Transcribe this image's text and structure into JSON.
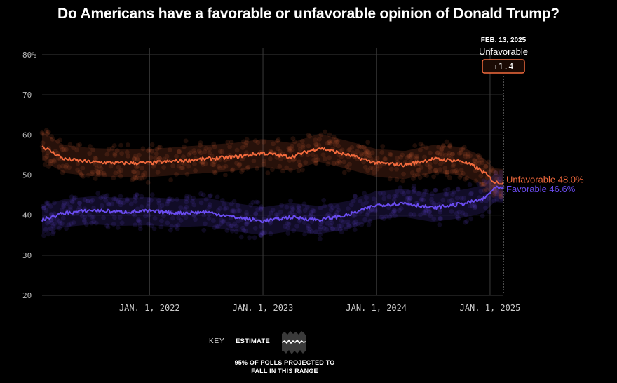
{
  "title": "Do Americans have a favorable or unfavorable opinion of Donald Trump?",
  "annotation": {
    "date": "FEB. 13, 2025",
    "label": "Unfavorable",
    "lead": "+1.4"
  },
  "key": {
    "key_label": "KEY",
    "estimate_label": "ESTIMATE",
    "range_label": "95% OF POLLS PROJECTED TO FALL IN THIS RANGE"
  },
  "colors": {
    "unfavorable": "#f26a3d",
    "favorable": "#6a4cf0",
    "grid": "#3a3a3a"
  },
  "chart_data": {
    "type": "line",
    "title": "Do Americans have a favorable or unfavorable opinion of Donald Trump?",
    "xlabel": "",
    "ylabel": "",
    "ylim": [
      20,
      80
    ],
    "y_ticks": [
      "80%",
      "70",
      "60",
      "50",
      "40",
      "30",
      "20"
    ],
    "x_ticks": [
      "JAN. 1, 2022",
      "JAN. 1, 2023",
      "JAN. 1, 2024",
      "JAN. 1, 2025"
    ],
    "x_range": [
      "2021-01-20",
      "2025-02-13"
    ],
    "grid": true,
    "series": [
      {
        "name": "Unfavorable",
        "end_label": "Unfavorable 48.0%",
        "x": [
          "2021-01-20",
          "2021-04-01",
          "2021-07-01",
          "2021-10-01",
          "2022-01-01",
          "2022-04-01",
          "2022-07-01",
          "2022-10-01",
          "2023-01-01",
          "2023-04-01",
          "2023-07-01",
          "2023-10-01",
          "2024-01-01",
          "2024-04-01",
          "2024-07-01",
          "2024-10-01",
          "2024-11-15",
          "2024-12-15",
          "2025-01-15",
          "2025-02-13"
        ],
        "values": [
          57.2,
          54.0,
          53.2,
          53.0,
          53.0,
          53.5,
          54.0,
          54.5,
          55.5,
          54.5,
          56.8,
          55.0,
          53.0,
          52.5,
          54.0,
          53.5,
          52.0,
          50.5,
          48.2,
          48.0
        ],
        "band": 3.5
      },
      {
        "name": "Favorable",
        "end_label": "Favorable 46.6%",
        "x": [
          "2021-01-20",
          "2021-04-01",
          "2021-07-01",
          "2021-10-01",
          "2022-01-01",
          "2022-04-01",
          "2022-07-01",
          "2022-10-01",
          "2023-01-01",
          "2023-04-01",
          "2023-07-01",
          "2023-10-01",
          "2024-01-01",
          "2024-04-01",
          "2024-07-01",
          "2024-10-01",
          "2024-11-15",
          "2024-12-15",
          "2025-01-15",
          "2025-02-13"
        ],
        "values": [
          38.8,
          40.5,
          41.2,
          40.8,
          41.0,
          40.5,
          40.8,
          39.5,
          38.5,
          39.5,
          38.8,
          40.0,
          42.5,
          43.0,
          41.8,
          42.8,
          43.5,
          44.2,
          46.8,
          46.6
        ],
        "band": 3.5
      }
    ]
  }
}
